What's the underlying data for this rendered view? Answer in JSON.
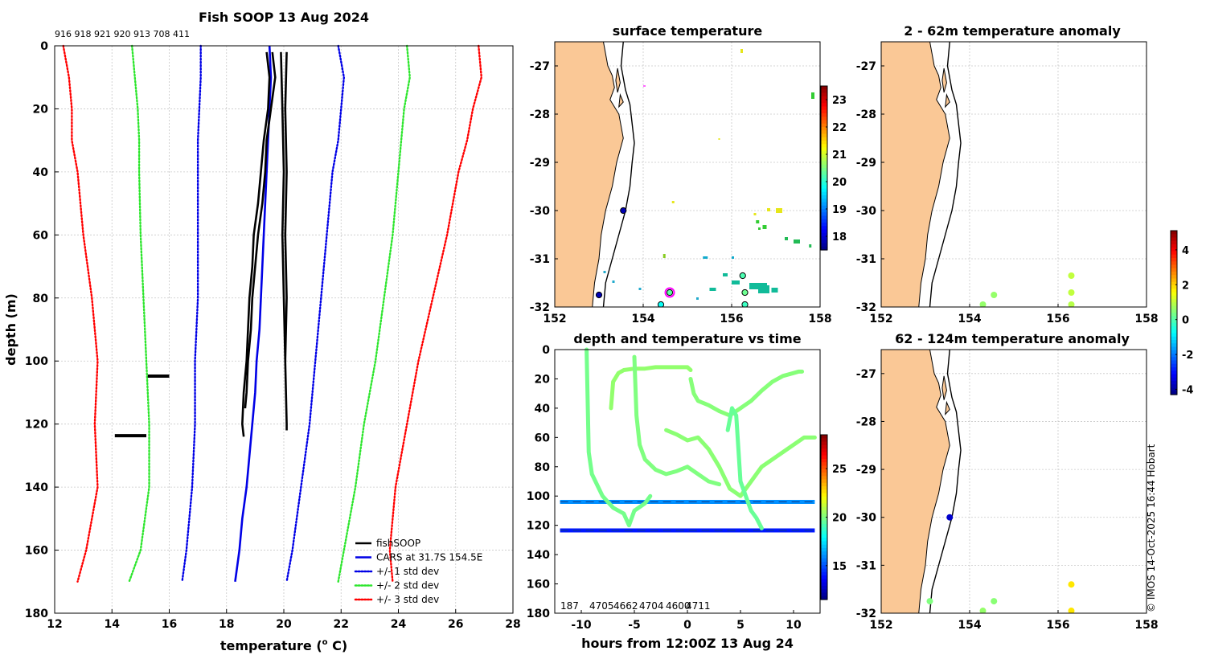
{
  "chart_data": [
    {
      "type": "line",
      "id": "profile",
      "title": "Fish SOOP 13 Aug 2024",
      "xlabel": "temperature (°C)",
      "xlabel_main": "temperature (",
      "xlabel_sup": "o",
      "xlabel_end": " C)",
      "ylabel": "depth (m)",
      "xlim": [
        12,
        28
      ],
      "ylim": [
        180,
        0
      ],
      "xticks": [
        12,
        14,
        16,
        18,
        20,
        22,
        24,
        26,
        28
      ],
      "yticks": [
        0,
        20,
        40,
        60,
        80,
        100,
        120,
        140,
        160,
        180
      ],
      "top_labels": "916 918 921 920 913 708 411",
      "legend": [
        {
          "label": "fishSOOP",
          "color": "#000000",
          "style": "solid"
        },
        {
          "label": "CARS at 31.7S 154.5E",
          "color": "#0000e6",
          "style": "solid"
        },
        {
          "label": "+/- 1 std dev",
          "color": "#0000e6",
          "style": "dotted"
        },
        {
          "label": "+/- 2 std dev",
          "color": "#2ee62e",
          "style": "dotted"
        },
        {
          "label": "+/- 3 std dev",
          "color": "#ff0000",
          "style": "dotted"
        }
      ],
      "series": [
        {
          "name": "CARS at 31.7S 154.5E",
          "color": "#0000e6",
          "style": "solid",
          "depth": [
            0,
            10,
            20,
            30,
            40,
            50,
            60,
            70,
            80,
            90,
            100,
            110,
            120,
            130,
            140,
            150,
            160,
            170
          ],
          "temp": [
            19.5,
            19.55,
            19.5,
            19.45,
            19.4,
            19.35,
            19.3,
            19.25,
            19.2,
            19.15,
            19.05,
            19.0,
            18.9,
            18.8,
            18.7,
            18.55,
            18.45,
            18.3
          ]
        },
        {
          "name": "-1 std",
          "color": "#0000e6",
          "style": "dotted",
          "depth": [
            0,
            10,
            20,
            30,
            40,
            60,
            80,
            100,
            120,
            140,
            160,
            170
          ],
          "temp": [
            17.1,
            17.1,
            17.05,
            17.0,
            17.0,
            17.0,
            17.0,
            16.9,
            16.9,
            16.8,
            16.6,
            16.45
          ]
        },
        {
          "name": "+1 std",
          "color": "#0000e6",
          "style": "dotted",
          "depth": [
            0,
            10,
            20,
            30,
            40,
            60,
            80,
            100,
            120,
            140,
            160,
            170
          ],
          "temp": [
            21.9,
            22.1,
            22.0,
            21.9,
            21.7,
            21.5,
            21.3,
            21.1,
            20.9,
            20.6,
            20.3,
            20.1
          ]
        },
        {
          "name": "-2 std",
          "color": "#2ee62e",
          "style": "dotted",
          "depth": [
            0,
            10,
            20,
            30,
            40,
            60,
            80,
            100,
            120,
            140,
            160,
            170
          ],
          "temp": [
            14.7,
            14.8,
            14.9,
            14.95,
            14.95,
            15.0,
            15.1,
            15.2,
            15.3,
            15.3,
            15.0,
            14.6
          ]
        },
        {
          "name": "+2 std",
          "color": "#2ee62e",
          "style": "dotted",
          "depth": [
            0,
            10,
            20,
            30,
            40,
            60,
            80,
            100,
            120,
            140,
            160,
            170
          ],
          "temp": [
            24.3,
            24.4,
            24.2,
            24.1,
            24.0,
            23.8,
            23.5,
            23.2,
            22.8,
            22.5,
            22.1,
            21.9
          ]
        },
        {
          "name": "-3 std",
          "color": "#ff0000",
          "style": "dotted",
          "depth": [
            0,
            10,
            20,
            30,
            40,
            60,
            80,
            100,
            120,
            140,
            160,
            170
          ],
          "temp": [
            12.3,
            12.5,
            12.6,
            12.6,
            12.8,
            13.0,
            13.3,
            13.5,
            13.4,
            13.5,
            13.1,
            12.8
          ]
        },
        {
          "name": "+3 std",
          "color": "#ff0000",
          "style": "dotted",
          "depth": [
            0,
            10,
            20,
            30,
            40,
            60,
            80,
            100,
            120,
            140,
            160,
            170
          ],
          "temp": [
            26.8,
            26.9,
            26.6,
            26.4,
            26.1,
            25.7,
            25.2,
            24.7,
            24.3,
            23.9,
            23.7,
            23.8
          ]
        },
        {
          "name": "fishSOOP cast A",
          "color": "#000000",
          "style": "solid",
          "depth": [
            2,
            10,
            20,
            30,
            40,
            50,
            60,
            70,
            80,
            90,
            100,
            110,
            120,
            124
          ],
          "temp": [
            19.4,
            19.5,
            19.45,
            19.3,
            19.2,
            19.1,
            18.95,
            18.9,
            18.8,
            18.75,
            18.7,
            18.6,
            18.55,
            18.6
          ]
        },
        {
          "name": "fishSOOP cast B",
          "color": "#000000",
          "style": "solid",
          "depth": [
            2,
            10,
            20,
            30,
            40,
            50,
            60,
            70,
            80,
            90,
            100,
            110,
            115
          ],
          "temp": [
            19.6,
            19.7,
            19.55,
            19.4,
            19.35,
            19.25,
            19.1,
            19.0,
            18.9,
            18.85,
            18.75,
            18.7,
            18.65
          ]
        },
        {
          "name": "fishSOOP cast C",
          "color": "#000000",
          "style": "solid",
          "depth": [
            2,
            20,
            40,
            60,
            80,
            100,
            120,
            122
          ],
          "temp": [
            20.1,
            20.05,
            20.1,
            20.05,
            20.1,
            20.05,
            20.1,
            20.1
          ]
        },
        {
          "name": "fishSOOP cast D",
          "color": "#000000",
          "style": "solid",
          "depth": [
            2,
            20,
            40,
            60,
            80,
            100
          ],
          "temp": [
            19.9,
            19.95,
            20.0,
            19.95,
            20.0,
            20.05
          ]
        }
      ],
      "horizontal_segments": [
        {
          "depth": 104.8,
          "temp_from": 15.25,
          "temp_to": 16.0
        },
        {
          "depth": 123.7,
          "temp_from": 14.1,
          "temp_to": 15.2
        }
      ]
    },
    {
      "type": "scatter",
      "id": "surface-temperature",
      "title": "surface temperature",
      "xlim": [
        152,
        158
      ],
      "ylim": [
        -32,
        -26.5
      ],
      "xticks": [
        152,
        154,
        156,
        158
      ],
      "yticks": [
        -27,
        -28,
        -29,
        -30,
        -31,
        -32
      ],
      "colorbar": {
        "min": 17.5,
        "max": 23.5,
        "ticks": [
          18,
          19,
          20,
          21,
          22,
          23
        ]
      },
      "points": [
        {
          "lon": 153.0,
          "lat": -31.75,
          "value": 17.8
        },
        {
          "lon": 153.55,
          "lat": -30.0,
          "value": 17.8
        },
        {
          "lon": 154.4,
          "lat": -31.95,
          "value": 19.8
        },
        {
          "lon": 154.6,
          "lat": -31.7,
          "value": 20.3
        },
        {
          "lon": 156.25,
          "lat": -31.35,
          "value": 20.2
        },
        {
          "lon": 156.3,
          "lat": -31.7,
          "value": 20.4
        },
        {
          "lon": 156.3,
          "lat": -31.95,
          "value": 20.1
        }
      ]
    },
    {
      "type": "scatter",
      "id": "anomaly-2-62",
      "title": "2 - 62m temperature anomaly",
      "xlim": [
        152,
        158
      ],
      "ylim": [
        -32,
        -26.5
      ],
      "xticks": [
        152,
        154,
        156,
        158
      ],
      "yticks": [
        -27,
        -28,
        -29,
        -30,
        -31,
        -32
      ],
      "colorbar": {
        "min": -4.3,
        "max": 5.1,
        "ticks": [
          4,
          2,
          0,
          -2,
          -4
        ]
      },
      "points": [
        {
          "lon": 154.3,
          "lat": -31.95,
          "value": 0.6
        },
        {
          "lon": 154.55,
          "lat": -31.75,
          "value": 0.6
        },
        {
          "lon": 156.3,
          "lat": -31.35,
          "value": 1.0
        },
        {
          "lon": 156.3,
          "lat": -31.7,
          "value": 1.0
        },
        {
          "lon": 156.3,
          "lat": -31.95,
          "value": 0.9
        }
      ]
    },
    {
      "type": "scatter",
      "id": "anomaly-62-124",
      "title": "62 - 124m temperature anomaly",
      "xlim": [
        152,
        158
      ],
      "ylim": [
        -32,
        -26.5
      ],
      "xticks": [
        152,
        154,
        156,
        158
      ],
      "yticks": [
        -27,
        -28,
        -29,
        -30,
        -31,
        -32
      ],
      "points": [
        {
          "lon": 153.55,
          "lat": -30.0,
          "value": -3.6
        },
        {
          "lon": 153.1,
          "lat": -31.75,
          "value": 0.4
        },
        {
          "lon": 154.3,
          "lat": -31.95,
          "value": 0.6
        },
        {
          "lon": 154.55,
          "lat": -31.75,
          "value": 0.5
        },
        {
          "lon": 156.3,
          "lat": -31.4,
          "value": 1.8
        },
        {
          "lon": 156.3,
          "lat": -31.95,
          "value": 1.8
        }
      ]
    },
    {
      "type": "scatter",
      "id": "depth-time",
      "title": "depth and temperature vs time",
      "xlabel": "hours from 12:00Z 13 Aug 24",
      "xlim": [
        -12.5,
        12.5
      ],
      "ylim": [
        180,
        0
      ],
      "xticks": [
        -10,
        -5,
        0,
        5,
        10
      ],
      "yticks": [
        0,
        20,
        40,
        60,
        80,
        100,
        120,
        140,
        160,
        180
      ],
      "colorbar": {
        "min": 11.5,
        "max": 28.5,
        "ticks": [
          15,
          20,
          25
        ]
      },
      "bottom_labels": [
        "187",
        "4705",
        "4662",
        "4704",
        "4600",
        "4711"
      ],
      "tracks": [
        {
          "value": 19.8,
          "hours": [
            -9.5,
            -9.3,
            -9.0,
            -8.0,
            -7.0,
            -6.0,
            -5.5,
            -5.0,
            -4.0,
            -3.5
          ],
          "depth": [
            0,
            70,
            85,
            100,
            108,
            112,
            120,
            110,
            105,
            100
          ]
        },
        {
          "value": 20.3,
          "hours": [
            -7.2,
            -7.0,
            -6.5,
            -6.0,
            -5.0,
            -4.0,
            -3.0,
            -2.0,
            -1.0,
            0.0,
            0.3
          ],
          "depth": [
            40,
            22,
            16,
            14,
            13,
            13,
            12,
            12,
            12,
            12,
            14
          ]
        },
        {
          "value": 20.0,
          "hours": [
            -5.0,
            -4.8,
            -4.5,
            -4.0,
            -3.0,
            -2.0,
            -1.0,
            0.0,
            1.0,
            2.0,
            3.0
          ],
          "depth": [
            5,
            45,
            65,
            75,
            82,
            85,
            83,
            80,
            85,
            90,
            92
          ]
        },
        {
          "value": 20.1,
          "hours": [
            0.3,
            0.6,
            1.0,
            2.0,
            3.0,
            4.0,
            5.0,
            6.0,
            7.0,
            8.0,
            9.0,
            10.0,
            10.5,
            10.8
          ],
          "depth": [
            20,
            30,
            35,
            38,
            42,
            45,
            40,
            35,
            28,
            22,
            18,
            16,
            15,
            15
          ]
        },
        {
          "value": 20.2,
          "hours": [
            -2.0,
            -1.0,
            0.0,
            1.0,
            2.0,
            3.0,
            4.0,
            5.0,
            6.0,
            7.0,
            8.0,
            9.0,
            10.0,
            11.0,
            12.0
          ],
          "depth": [
            55,
            58,
            62,
            60,
            68,
            80,
            95,
            100,
            90,
            80,
            75,
            70,
            65,
            60,
            60
          ]
        },
        {
          "value": 19.6,
          "hours": [
            3.8,
            4.2,
            4.6,
            5.0,
            5.5,
            6.0,
            6.5,
            7.0
          ],
          "depth": [
            55,
            40,
            45,
            90,
            100,
            110,
            115,
            122
          ]
        }
      ],
      "bands": [
        {
          "value": 16.0,
          "depth": 104.0,
          "hours": [
            -12.0,
            12.0
          ]
        },
        {
          "value": 14.0,
          "depth": 123.5,
          "hours": [
            -12.0,
            12.0
          ]
        }
      ]
    }
  ],
  "credit": "© IMOS 14-Oct-2025 16:44 Hobart"
}
